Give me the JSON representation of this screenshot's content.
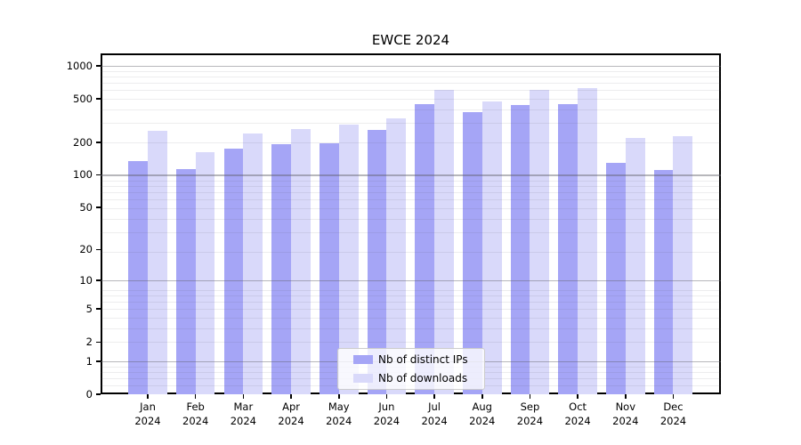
{
  "chart_data": {
    "type": "bar",
    "title": "EWCE 2024",
    "categories": [
      "Jan",
      "Feb",
      "Mar",
      "Apr",
      "May",
      "Jun",
      "Jul",
      "Aug",
      "Sep",
      "Oct",
      "Nov",
      "Dec"
    ],
    "year_label": "2024",
    "series": [
      {
        "name": "Nb of distinct IPs",
        "color": "#a5a5f6",
        "values": [
          135,
          113,
          173,
          192,
          195,
          260,
          447,
          378,
          437,
          442,
          128,
          111
        ]
      },
      {
        "name": "Nb of downloads",
        "color": "#d9d9fa",
        "values": [
          255,
          163,
          242,
          266,
          289,
          332,
          607,
          471,
          607,
          623,
          217,
          229
        ]
      }
    ],
    "y_ticks": [
      0,
      1,
      2,
      5,
      10,
      20,
      50,
      100,
      200,
      500,
      1000
    ],
    "y_scale": "log10(1+v)",
    "ylim": [
      0,
      1100
    ],
    "grid": true,
    "legend_position": "lower center",
    "colors": {
      "grid_major": "#b0b0b0",
      "grid_minor": "#e8e8e8",
      "axis": "#000000",
      "background": "#ffffff"
    }
  }
}
